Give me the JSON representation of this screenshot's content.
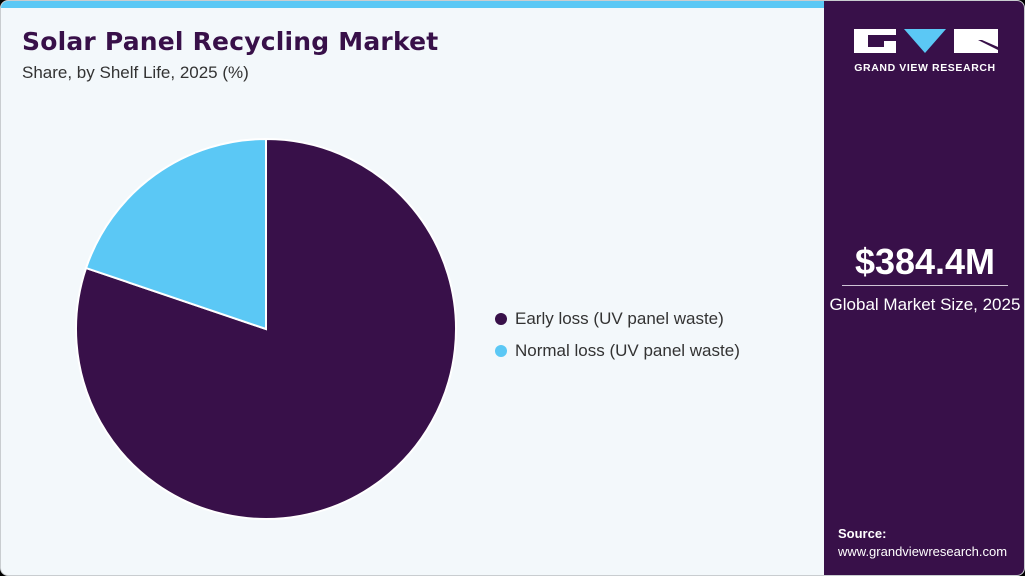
{
  "header": {
    "title": "Solar Panel Recycling Market",
    "subtitle": "Share, by Shelf Life, 2025 (%)"
  },
  "colors": {
    "primary": "#381049",
    "accent": "#5bc8f5",
    "background": "#f3f8fb"
  },
  "chart_data": {
    "type": "pie",
    "title": "Solar Panel Recycling Market",
    "subtitle": "Share, by Shelf Life, 2025 (%)",
    "categories": [
      "Early loss (UV panel waste)",
      "Normal loss (UV panel waste)"
    ],
    "values": [
      80.2,
      19.8
    ],
    "colors": [
      "#381049",
      "#5bc8f5"
    ],
    "legend_position": "right"
  },
  "legend": {
    "items": [
      {
        "label": "Early loss (UV panel waste)",
        "color": "#381049"
      },
      {
        "label": "Normal loss (UV panel waste)",
        "color": "#5bc8f5"
      }
    ]
  },
  "sidebar": {
    "brand": "GRAND VIEW RESEARCH",
    "market_value": "$384.4M",
    "market_label": "Global Market Size, 2025",
    "source_label": "Source:",
    "source_url": "www.grandviewresearch.com"
  }
}
